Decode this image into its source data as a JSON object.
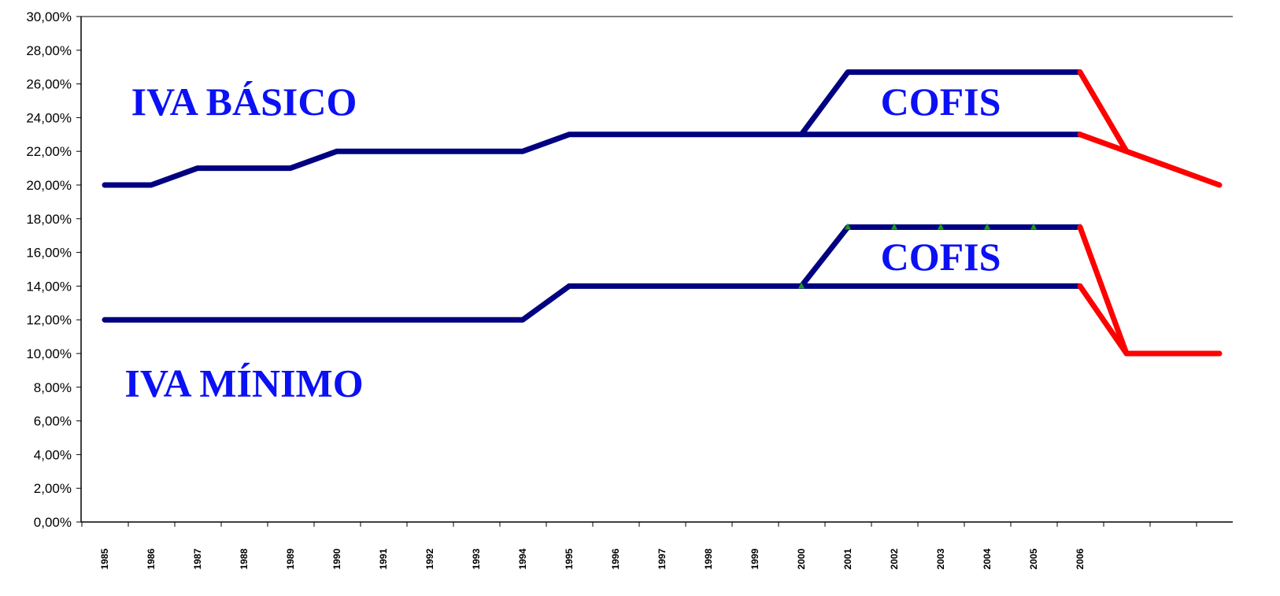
{
  "chart_data": {
    "type": "line",
    "title": "",
    "xlabel": "",
    "ylabel": "",
    "ylim": [
      0,
      30
    ],
    "ytick_labels": [
      "0,00%",
      "2,00%",
      "4,00%",
      "6,00%",
      "8,00%",
      "10,00%",
      "12,00%",
      "14,00%",
      "16,00%",
      "18,00%",
      "20,00%",
      "22,00%",
      "24,00%",
      "26,00%",
      "28,00%",
      "30,00%"
    ],
    "categories": [
      "1985",
      "1986",
      "1987",
      "1988",
      "1989",
      "1990",
      "1991",
      "1992",
      "1993",
      "1994",
      "1995",
      "1996",
      "1997",
      "1998",
      "1999",
      "2000",
      "2001",
      "2002",
      "2003",
      "2004",
      "2005",
      "2006",
      "",
      "",
      ""
    ],
    "grid": false,
    "legend": "none",
    "annotations": [
      {
        "text": "IVA BÁSICO",
        "x": "1988",
        "y": 25
      },
      {
        "text": "COFIS",
        "x": "2003",
        "y": 25
      },
      {
        "text": "COFIS",
        "x": "2003",
        "y": 15.8
      },
      {
        "text": "IVA MÍNIMO",
        "x": "1988",
        "y": 8.3
      }
    ],
    "series": [
      {
        "key": "iva_basico",
        "color": "#000080",
        "values": [
          20,
          20,
          21,
          21,
          21,
          22,
          22,
          22,
          22,
          22,
          23,
          23,
          23,
          23,
          23,
          23,
          23,
          23,
          23,
          23,
          23,
          23,
          null,
          null,
          null
        ]
      },
      {
        "key": "iva_basico_cofis",
        "color": "#000080",
        "values": [
          null,
          null,
          null,
          null,
          null,
          null,
          null,
          null,
          null,
          null,
          null,
          null,
          null,
          null,
          null,
          23,
          26.7,
          26.7,
          26.7,
          26.7,
          26.7,
          26.7,
          null,
          null,
          null
        ]
      },
      {
        "key": "iva_basico_projection",
        "color": "#ff0000",
        "values": [
          null,
          null,
          null,
          null,
          null,
          null,
          null,
          null,
          null,
          null,
          null,
          null,
          null,
          null,
          null,
          null,
          null,
          null,
          null,
          null,
          null,
          23,
          22,
          21,
          20
        ]
      },
      {
        "key": "cofis_step_basico",
        "color": "#ff0000",
        "values": [
          null,
          null,
          null,
          null,
          null,
          null,
          null,
          null,
          null,
          null,
          null,
          null,
          null,
          null,
          null,
          null,
          null,
          null,
          null,
          null,
          null,
          26.7,
          22,
          null,
          null
        ]
      },
      {
        "key": "iva_minimo",
        "color": "#000080",
        "values": [
          12,
          12,
          12,
          12,
          12,
          12,
          12,
          12,
          12,
          12,
          14,
          14,
          14,
          14,
          14,
          14,
          14,
          14,
          14,
          14,
          14,
          14,
          null,
          null,
          null
        ]
      },
      {
        "key": "iva_minimo_cofis",
        "color": "#000080",
        "marker_color": "#1a9a1a",
        "values": [
          null,
          null,
          null,
          null,
          null,
          null,
          null,
          null,
          null,
          null,
          null,
          null,
          null,
          null,
          null,
          14,
          17.5,
          17.5,
          17.5,
          17.5,
          17.5,
          17.5,
          null,
          null,
          null
        ]
      },
      {
        "key": "iva_minimo_projection",
        "color": "#ff0000",
        "values": [
          null,
          null,
          null,
          null,
          null,
          null,
          null,
          null,
          null,
          null,
          null,
          null,
          null,
          null,
          null,
          null,
          null,
          null,
          null,
          null,
          null,
          14,
          10,
          10,
          10
        ]
      },
      {
        "key": "cofis_step_minimo",
        "color": "#ff0000",
        "values": [
          null,
          null,
          null,
          null,
          null,
          null,
          null,
          null,
          null,
          null,
          null,
          null,
          null,
          null,
          null,
          null,
          null,
          null,
          null,
          null,
          null,
          17.5,
          10,
          null,
          null
        ]
      }
    ]
  }
}
